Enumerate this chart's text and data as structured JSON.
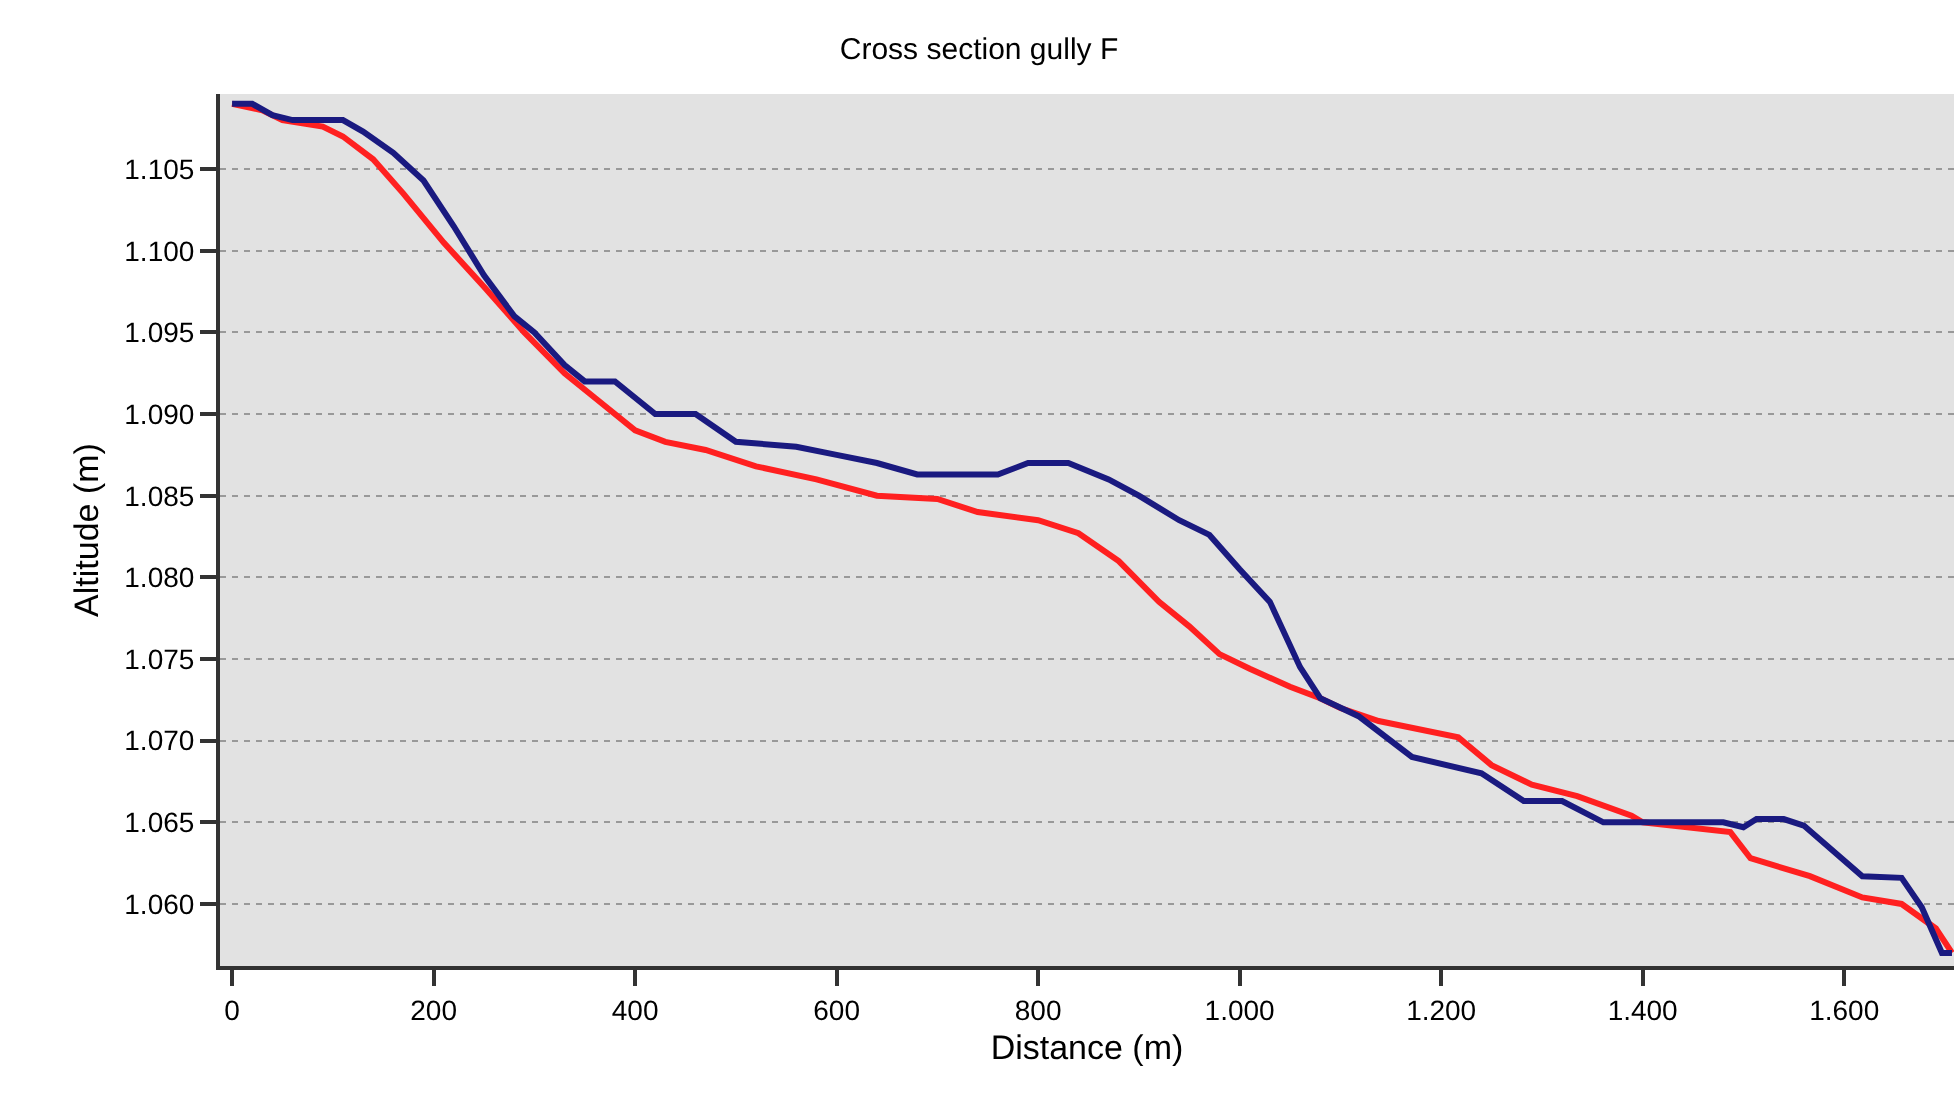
{
  "chart_data": {
    "type": "line",
    "title": "Cross section gully F",
    "xlabel": "Distance (m)",
    "ylabel": "Altitude (m)",
    "xlim": [
      -12,
      1709
    ],
    "ylim": [
      1056.2,
      1109.6
    ],
    "xticks": [
      0,
      200,
      400,
      600,
      800,
      {
        "value": 1000,
        "label": "1.000"
      },
      {
        "value": 1200,
        "label": "1.200"
      },
      {
        "value": 1400,
        "label": "1.400"
      },
      {
        "value": 1600,
        "label": "1.600"
      }
    ],
    "yticks": [
      {
        "value": 1060,
        "label": "1.060"
      },
      {
        "value": 1065,
        "label": "1.065"
      },
      {
        "value": 1070,
        "label": "1.070"
      },
      {
        "value": 1075,
        "label": "1.075"
      },
      {
        "value": 1080,
        "label": "1.080"
      },
      {
        "value": 1085,
        "label": "1.085"
      },
      {
        "value": 1090,
        "label": "1.090"
      },
      {
        "value": 1095,
        "label": "1.095"
      },
      {
        "value": 1100,
        "label": "1.100"
      },
      {
        "value": 1105,
        "label": "1.105"
      }
    ],
    "grid": "y",
    "marker": "none",
    "line_style": "solid",
    "series": [
      {
        "color": "#ff2020",
        "x": [
          0,
          30,
          50,
          90,
          110,
          140,
          170,
          210,
          250,
          290,
          330,
          360,
          400,
          430,
          470,
          520,
          580,
          640,
          700,
          740,
          800,
          840,
          880,
          920,
          950,
          980,
          1010,
          1050,
          1080,
          1100,
          1138,
          1217,
          1250,
          1290,
          1335,
          1389,
          1400,
          1487,
          1507,
          1566,
          1618,
          1657,
          1691,
          1707
        ],
        "values": [
          1109,
          1108.6,
          1108,
          1107.6,
          1107,
          1105.6,
          1103.5,
          1100.5,
          1097.8,
          1095,
          1092.5,
          1091,
          1089,
          1088.3,
          1087.8,
          1086.8,
          1086,
          1085,
          1084.8,
          1084,
          1083.5,
          1082.7,
          1081,
          1078.5,
          1077,
          1075.3,
          1074.4,
          1073.3,
          1072.6,
          1072,
          1071.2,
          1070.2,
          1068.5,
          1067.3,
          1066.6,
          1065.4,
          1065,
          1064.4,
          1062.8,
          1061.7,
          1060.4,
          1060,
          1058.5,
          1057
        ]
      },
      {
        "color": "#1a1a80",
        "x": [
          0,
          20,
          40,
          60,
          110,
          130,
          160,
          190,
          220,
          250,
          280,
          300,
          330,
          350,
          380,
          400,
          420,
          460,
          500,
          560,
          600,
          640,
          680,
          760,
          790,
          830,
          870,
          900,
          940,
          970,
          1000,
          1030,
          1060,
          1080,
          1118,
          1171,
          1240,
          1282,
          1320,
          1361,
          1400,
          1480,
          1500,
          1513,
          1540,
          1560,
          1618,
          1657,
          1677,
          1697,
          1707
        ],
        "values": [
          1109,
          1109,
          1108.3,
          1108,
          1108,
          1107.3,
          1106,
          1104.3,
          1101.5,
          1098.5,
          1096,
          1095,
          1093,
          1092,
          1092,
          1091,
          1090,
          1090,
          1088.3,
          1088,
          1087.5,
          1087,
          1086.3,
          1086.3,
          1087,
          1087,
          1086,
          1085,
          1083.5,
          1082.6,
          1080.5,
          1078.5,
          1074.5,
          1072.6,
          1071.5,
          1069,
          1068,
          1066.3,
          1066.3,
          1065,
          1065,
          1065,
          1064.7,
          1065.2,
          1065.2,
          1064.8,
          1061.7,
          1061.6,
          1059.8,
          1057,
          1057
        ]
      }
    ]
  }
}
